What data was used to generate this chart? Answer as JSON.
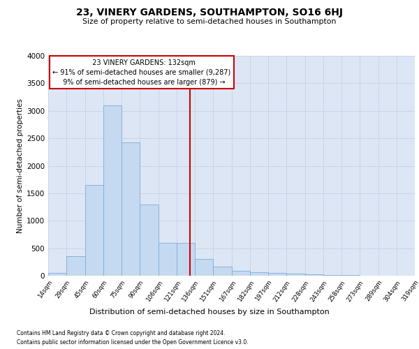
{
  "title": "23, VINERY GARDENS, SOUTHAMPTON, SO16 6HJ",
  "subtitle": "Size of property relative to semi-detached houses in Southampton",
  "xlabel": "Distribution of semi-detached houses by size in Southampton",
  "ylabel": "Number of semi-detached properties",
  "footnote1": "Contains HM Land Registry data © Crown copyright and database right 2024.",
  "footnote2": "Contains public sector information licensed under the Open Government Licence v3.0.",
  "property_size": 132,
  "property_label": "23 VINERY GARDENS: 132sqm",
  "pct_smaller": 91,
  "n_smaller": 9287,
  "pct_larger": 9,
  "n_larger": 879,
  "bin_edges": [
    14,
    29,
    45,
    60,
    75,
    90,
    106,
    121,
    136,
    151,
    167,
    182,
    197,
    212,
    228,
    243,
    258,
    273,
    289,
    304,
    319
  ],
  "bar_heights": [
    50,
    350,
    1650,
    3100,
    2430,
    1300,
    600,
    600,
    310,
    160,
    95,
    65,
    50,
    35,
    20,
    15,
    10,
    5,
    5,
    2
  ],
  "bar_color": "#c5d9f1",
  "bar_edge_color": "#7bafd4",
  "vline_color": "#cc0000",
  "box_edge_color": "#cc0000",
  "grid_color": "#c8d5e8",
  "background_color": "#dce6f5",
  "ylim": [
    0,
    4000
  ],
  "yticks": [
    0,
    500,
    1000,
    1500,
    2000,
    2500,
    3000,
    3500,
    4000
  ]
}
